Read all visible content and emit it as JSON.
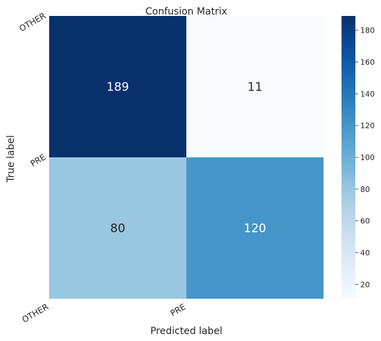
{
  "chart_data": {
    "type": "heatmap",
    "title": "Confusion Matrix",
    "xlabel": "Predicted label",
    "ylabel": "True label",
    "x_categories": [
      "OTHER",
      "PRE"
    ],
    "y_categories": [
      "OTHER",
      "PRE"
    ],
    "values": [
      [
        189,
        11
      ],
      [
        80,
        120
      ]
    ],
    "colormap": "Blues",
    "colorbar": {
      "min": 11,
      "max": 189,
      "ticks": [
        20,
        40,
        60,
        80,
        100,
        120,
        140,
        160,
        180
      ]
    },
    "grid": false,
    "colors": {
      "low": "#f7fbff",
      "high": "#08306b"
    }
  }
}
